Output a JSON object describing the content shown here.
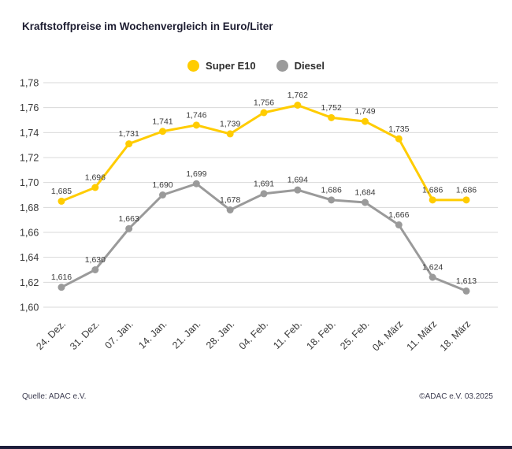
{
  "title": "Kraftstoffpreise im Wochenvergleich in Euro/Liter",
  "legend": [
    {
      "label": "Super E10",
      "color": "#FFCC00"
    },
    {
      "label": "Diesel",
      "color": "#9A9A9A"
    }
  ],
  "footer": {
    "source": "Quelle: ADAC e.V.",
    "copyright": "©ADAC e.V. 03.2025"
  },
  "colors": {
    "grid": "#d8d8d8",
    "axis_text": "#3a3a3a",
    "data_label": "#3a3a3a",
    "title_text": "#1e1e32"
  },
  "chart_data": {
    "type": "line",
    "title": "Kraftstoffpreise im Wochenvergleich in Euro/Liter",
    "xlabel": "",
    "ylabel": "Euro/Liter",
    "categories": [
      "24. Dez.",
      "31. Dez.",
      "07. Jan.",
      "14. Jan.",
      "21. Jan.",
      "28. Jan.",
      "04. Feb.",
      "11. Feb.",
      "18. Feb.",
      "25. Feb.",
      "04. März",
      "11. März",
      "18. März"
    ],
    "series": [
      {
        "name": "Super E10",
        "color": "#FFCC00",
        "values": [
          1.685,
          1.696,
          1.731,
          1.741,
          1.746,
          1.739,
          1.756,
          1.762,
          1.752,
          1.749,
          1.735,
          1.686,
          1.686
        ]
      },
      {
        "name": "Diesel",
        "color": "#9A9A9A",
        "values": [
          1.616,
          1.63,
          1.663,
          1.69,
          1.699,
          1.678,
          1.691,
          1.694,
          1.686,
          1.684,
          1.666,
          1.624,
          1.613
        ]
      }
    ],
    "ylim": [
      1.6,
      1.78
    ],
    "ytick_step": 0.02,
    "grid": true,
    "legend_position": "top-center",
    "decimal_separator": ",",
    "point_labels": true
  }
}
